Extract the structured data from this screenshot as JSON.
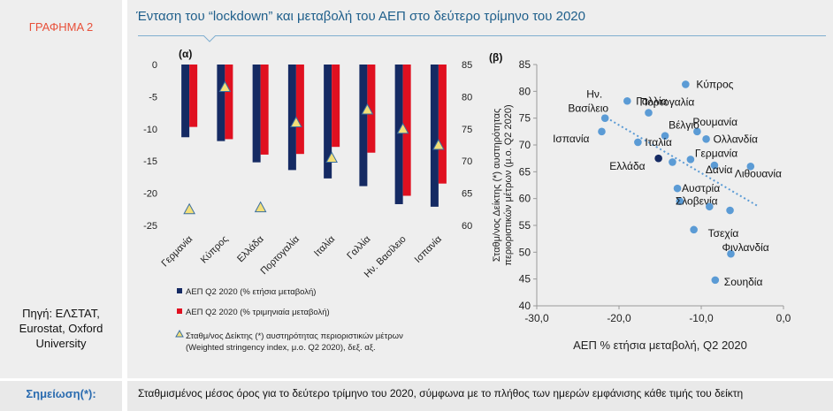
{
  "figure_label": "ΓΡΑΦΗΜΑ 2",
  "title": "Ένταση του “lockdown” και μεταβολή του ΑΕΠ στο δεύτερο τρίμηνο του 2020",
  "source": [
    "Πηγή: ΕΛΣΤΑΤ,",
    "Eurostat, Oxford",
    "University"
  ],
  "note_label": "Σημείωση(*):",
  "note_text": "Σταθμισμένος μέσος όρος για το δεύτερο τρίμηνο του 2020, σύμφωνα με το πλήθος των ημερών εμφάνισης κάθε τιμής του δείκτη",
  "colors": {
    "navy": "#152a63",
    "red": "#e01020",
    "triangle": "#f3df78",
    "dot": "#5b9bd5",
    "accent": "#1f5f8b"
  },
  "chart_data": [
    {
      "type": "bar",
      "panel_label": "(α)",
      "categories": [
        "Γερμανία",
        "Κύπρος",
        "Ελλάδα",
        "Πορτογαλία",
        "Ιταλία",
        "Γαλλία",
        "Ην. Βασίλειο",
        "Ισπανία"
      ],
      "series": [
        {
          "name": "ΑΕΠ Q2 2020 (% ετήσια μεταβολή)",
          "values": [
            -11.3,
            -11.9,
            -15.2,
            -16.4,
            -17.7,
            -18.9,
            -21.7,
            -22.1
          ]
        },
        {
          "name": "ΑΕΠ Q2 2020 (% τριμηνιαία μεταβολή)",
          "values": [
            -9.7,
            -11.6,
            -14.0,
            -13.9,
            -12.8,
            -13.7,
            -20.4,
            -18.5
          ]
        },
        {
          "name": "Σταθμ/νος Δείκτης (*) αυστηρότητας περιοριστικών μέτρων (Weighted stringency index, μ.ο. Q2 2020), δεξ. αξ.",
          "axis": "right",
          "values": [
            62.5,
            81.5,
            62.8,
            76.0,
            70.5,
            78.0,
            75.0,
            72.5
          ]
        }
      ],
      "left_axis": {
        "ylim": [
          -25,
          0
        ],
        "ticks": [
          "0",
          "-5",
          "-10",
          "-15",
          "-20",
          "-25"
        ]
      },
      "right_axis": {
        "ylim": [
          60,
          85
        ],
        "ticks": [
          "85",
          "80",
          "75",
          "70",
          "65",
          "60"
        ]
      },
      "legend_position": "bottom"
    },
    {
      "type": "scatter",
      "panel_label": "(β)",
      "xlabel": "ΑΕΠ % ετήσια μεταβολή, Q2 2020",
      "ylabel": [
        "Σταθμ/νος Δείκτης (*) αυστηρότητας",
        "περιοριστικών μέτρων (μ.ο. Q2 2020)"
      ],
      "xlim": [
        -30,
        0
      ],
      "ylim": [
        40,
        85
      ],
      "x_ticks": [
        "-30,0",
        "-20,0",
        "-10,0",
        "0,0"
      ],
      "y_ticks": [
        "85",
        "80",
        "75",
        "70",
        "65",
        "60",
        "55",
        "50",
        "45",
        "40"
      ],
      "points": [
        {
          "label": "Κύπρος",
          "x": -11.9,
          "y": 81.3
        },
        {
          "label": "Ην. Βασίλειο",
          "x": -21.7,
          "y": 75.0
        },
        {
          "label": "Γαλλία",
          "x": -19.0,
          "y": 78.2
        },
        {
          "label": "Πορτογαλία",
          "x": -16.4,
          "y": 76.0
        },
        {
          "label": "Ρουμανία",
          "x": -10.5,
          "y": 72.5
        },
        {
          "label": "Βέλγιο",
          "x": -14.4,
          "y": 71.7
        },
        {
          "label": "Ολλανδία",
          "x": -9.4,
          "y": 71.1
        },
        {
          "label": "Ιταλία",
          "x": -17.7,
          "y": 70.5
        },
        {
          "label": "Ισπανία",
          "x": -22.1,
          "y": 72.5
        },
        {
          "label": "Γερμανία",
          "x": -11.3,
          "y": 67.3
        },
        {
          "label": "Ελλάδα",
          "x": -15.2,
          "y": 67.5
        },
        {
          "label": "Δανία",
          "x": -8.4,
          "y": 66.2
        },
        {
          "label": "Λιθουανία",
          "x": -4.0,
          "y": 66.0
        },
        {
          "label": "Αυστρία",
          "x": -12.9,
          "y": 61.9
        },
        {
          "label": "Σλοβενία",
          "x": -12.6,
          "y": 59.5
        },
        {
          "label": "Τσεχία",
          "x": -10.9,
          "y": 54.2
        },
        {
          "label": "Φινλανδία",
          "x": -6.4,
          "y": 49.7
        },
        {
          "label": "Σουηδία",
          "x": -8.3,
          "y": 44.8
        },
        {
          "label": "",
          "x": -9.0,
          "y": 58.5
        },
        {
          "label": "",
          "x": -6.5,
          "y": 57.8
        },
        {
          "label": "",
          "x": -13.5,
          "y": 66.8
        }
      ],
      "trendline": {
        "x": [
          -22,
          -3
        ],
        "y": [
          75.5,
          58.5
        ],
        "style": "dotted"
      },
      "grid": false
    }
  ]
}
